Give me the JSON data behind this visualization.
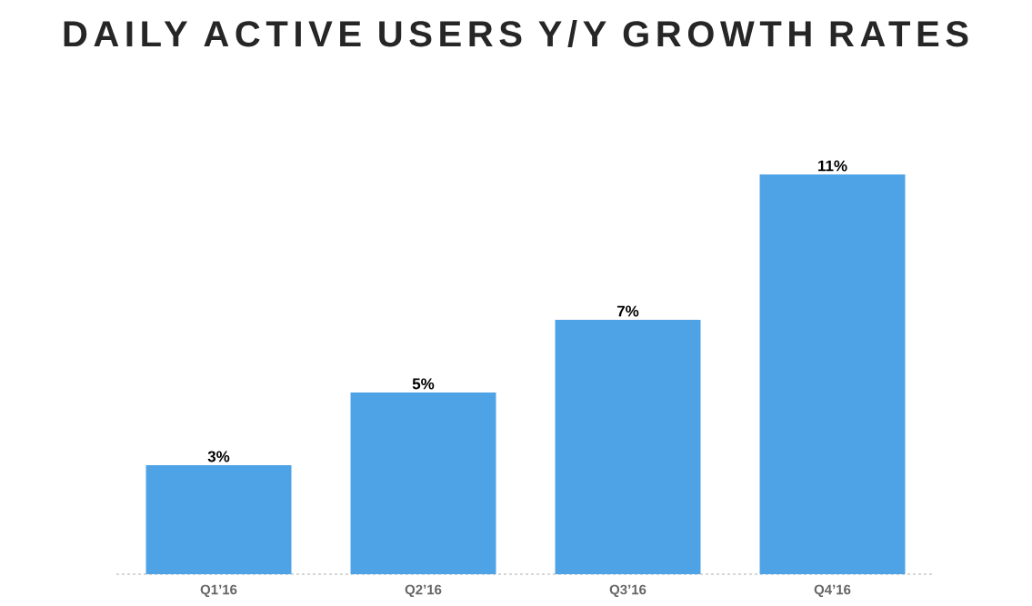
{
  "chart_data": {
    "type": "bar",
    "title": "DAILY ACTIVE USERS Y/Y GROWTH RATES",
    "categories": [
      "Q1’16",
      "Q2’16",
      "Q3’16",
      "Q4’16"
    ],
    "values": [
      3,
      5,
      7,
      11
    ],
    "value_labels": [
      "3%",
      "5%",
      "7%",
      "11%"
    ],
    "color": "#4ea3e6",
    "line_style": "dashed"
  }
}
